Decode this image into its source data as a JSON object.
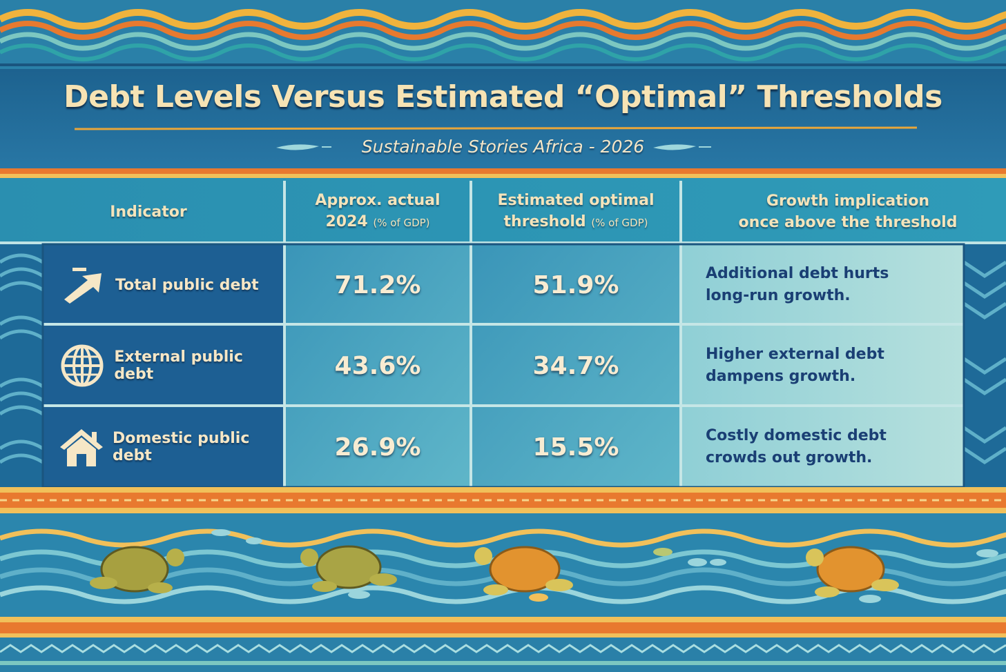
{
  "title": "Debt Levels Versus Estimated “Optimal” Thresholds",
  "subtitle": "Sustainable Stories Africa - 2026",
  "table": {
    "headers": {
      "indicator": "Indicator",
      "actual_line1": "Approx. actual",
      "actual_line2": "2024",
      "actual_unit": "(% of GDP)",
      "optimal_line1": "Estimated optimal",
      "optimal_line2": "threshold",
      "optimal_unit": "(% of GDP)",
      "growth_line1": "Growth implication",
      "growth_line2": "once above the threshold"
    },
    "rows": [
      {
        "icon": "arrow-up-right-icon",
        "indicator": "Total public debt",
        "actual": "71.2%",
        "optimal": "51.9%",
        "implication_line1": "Additional debt hurts",
        "implication_line2": "long-run growth."
      },
      {
        "icon": "globe-icon",
        "indicator": "External public debt",
        "actual": "43.6%",
        "optimal": "34.7%",
        "implication_line1": "Higher external debt",
        "implication_line2": "dampens growth."
      },
      {
        "icon": "house-icon",
        "indicator": "Domestic public debt",
        "actual": "26.9%",
        "optimal": "15.5%",
        "implication_line1": "Costly domestic debt",
        "implication_line2": "crowds out growth."
      }
    ]
  },
  "colors": {
    "background": "#1f6a98",
    "title_text": "#f6e3b4",
    "accent_orange": "#e8792f",
    "accent_yellow": "#f1b33c",
    "implication_text": "#1a3f74"
  }
}
